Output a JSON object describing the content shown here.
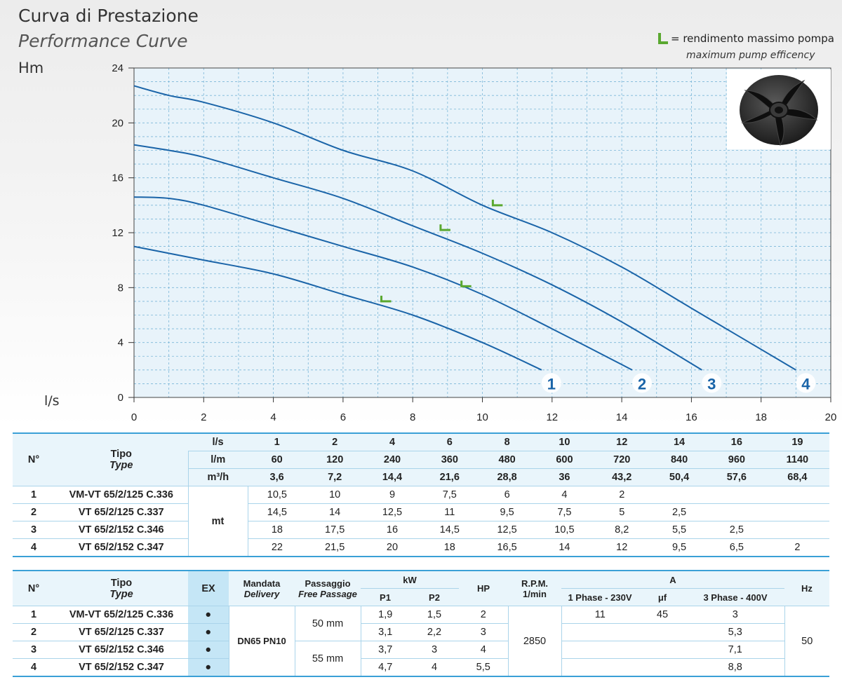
{
  "header": {
    "title": "Curva di Prestazione",
    "subtitle": "Performance Curve",
    "y_unit": "Hm",
    "x_unit": "l/s"
  },
  "legend": {
    "symbol": "L",
    "text": "= rendimento massimo pompa",
    "text_en": "maximum pump efficency",
    "symbol_color": "#5aa830"
  },
  "chart_data": {
    "type": "line",
    "xlabel": "l/s",
    "ylabel": "Hm",
    "xlim": [
      0,
      20
    ],
    "ylim": [
      0,
      24
    ],
    "x_ticks": [
      0,
      2,
      4,
      6,
      8,
      10,
      12,
      14,
      16,
      18,
      20
    ],
    "y_ticks": [
      0,
      4,
      8,
      12,
      16,
      20,
      24
    ],
    "grid": true,
    "line_color": "#1a64a8",
    "series": [
      {
        "name": "1",
        "x": [
          0,
          1,
          2,
          4,
          6,
          8,
          10,
          11.7
        ],
        "y": [
          11,
          10.5,
          10,
          9,
          7.5,
          6,
          4,
          2
        ],
        "bep": [
          7.1,
          7
        ]
      },
      {
        "name": "2",
        "x": [
          0,
          1,
          2,
          4,
          6,
          8,
          10,
          12,
          14.3
        ],
        "y": [
          14.6,
          14.5,
          14,
          12.5,
          11,
          9.5,
          7.5,
          5,
          2
        ],
        "bep": [
          9.4,
          8.1
        ]
      },
      {
        "name": "3",
        "x": [
          0,
          1,
          2,
          4,
          6,
          8,
          10,
          12,
          14,
          16.3
        ],
        "y": [
          18.4,
          18,
          17.5,
          16,
          14.5,
          12.5,
          10.5,
          8.2,
          5.5,
          2
        ],
        "bep": [
          8.8,
          12.2
        ]
      },
      {
        "name": "4",
        "x": [
          0,
          1,
          2,
          4,
          6,
          8,
          10,
          12,
          14,
          16,
          19
        ],
        "y": [
          22.7,
          22,
          21.5,
          20,
          18,
          16.5,
          14,
          12,
          9.5,
          6.5,
          2
        ],
        "bep": [
          10.3,
          14
        ]
      }
    ]
  },
  "table1": {
    "col_n": "N°",
    "col_tipo": "Tipo",
    "col_type": "Type",
    "unit_ls": "l/s",
    "unit_lm": "l/m",
    "unit_m3h": "m³/h",
    "unit_mt": "mt",
    "ls": [
      "1",
      "2",
      "4",
      "6",
      "8",
      "10",
      "12",
      "14",
      "16",
      "19"
    ],
    "lm": [
      "60",
      "120",
      "240",
      "360",
      "480",
      "600",
      "720",
      "840",
      "960",
      "1140"
    ],
    "m3h": [
      "3,6",
      "7,2",
      "14,4",
      "21,6",
      "28,8",
      "36",
      "43,2",
      "50,4",
      "57,6",
      "68,4"
    ],
    "rows": [
      {
        "n": "1",
        "type": "VM-VT 65/2/125 C.336",
        "values": [
          "10,5",
          "10",
          "9",
          "7,5",
          "6",
          "4",
          "2",
          "",
          "",
          ""
        ]
      },
      {
        "n": "2",
        "type": "VT 65/2/125 C.337",
        "values": [
          "14,5",
          "14",
          "12,5",
          "11",
          "9,5",
          "7,5",
          "5",
          "2,5",
          "",
          ""
        ]
      },
      {
        "n": "3",
        "type": "VT 65/2/152 C.346",
        "values": [
          "18",
          "17,5",
          "16",
          "14,5",
          "12,5",
          "10,5",
          "8,2",
          "5,5",
          "2,5",
          ""
        ]
      },
      {
        "n": "4",
        "type": "VT 65/2/152 C.347",
        "values": [
          "22",
          "21,5",
          "20",
          "18",
          "16,5",
          "14",
          "12",
          "9,5",
          "6,5",
          "2"
        ]
      }
    ]
  },
  "table2": {
    "col_n": "N°",
    "col_tipo": "Tipo",
    "col_type": "Type",
    "col_ex": "EX",
    "col_mandata": "Mandata",
    "col_delivery": "Delivery",
    "col_passaggio": "Passaggio",
    "col_freepassage": "Free Passage",
    "col_kw": "kW",
    "col_p1": "P1",
    "col_p2": "P2",
    "col_hp": "HP",
    "col_rpm": "R.P.M.",
    "col_rpm_unit": "1/min",
    "col_a": "A",
    "col_1ph": "1 Phase - 230V",
    "col_uf": "μf",
    "col_3ph": "3 Phase - 400V",
    "col_hz": "Hz",
    "delivery": "DN65 PN10",
    "passage_a": "50 mm",
    "passage_b": "55 mm",
    "rpm": "2850",
    "hz": "50",
    "ex_mark": "●",
    "rows": [
      {
        "n": "1",
        "type": "VM-VT 65/2/125 C.336",
        "p1": "1,9",
        "p2": "1,5",
        "hp": "2",
        "a1": "11",
        "uf": "45",
        "a3": "3"
      },
      {
        "n": "2",
        "type": "VT 65/2/125 C.337",
        "p1": "3,1",
        "p2": "2,2",
        "hp": "3",
        "a1": "",
        "uf": "",
        "a3": "5,3"
      },
      {
        "n": "3",
        "type": "VT 65/2/152 C.346",
        "p1": "3,7",
        "p2": "3",
        "hp": "4",
        "a1": "",
        "uf": "",
        "a3": "7,1"
      },
      {
        "n": "4",
        "type": "VT 65/2/152 C.347",
        "p1": "4,7",
        "p2": "4",
        "hp": "5,5",
        "a1": "",
        "uf": "",
        "a3": "8,8"
      }
    ]
  }
}
